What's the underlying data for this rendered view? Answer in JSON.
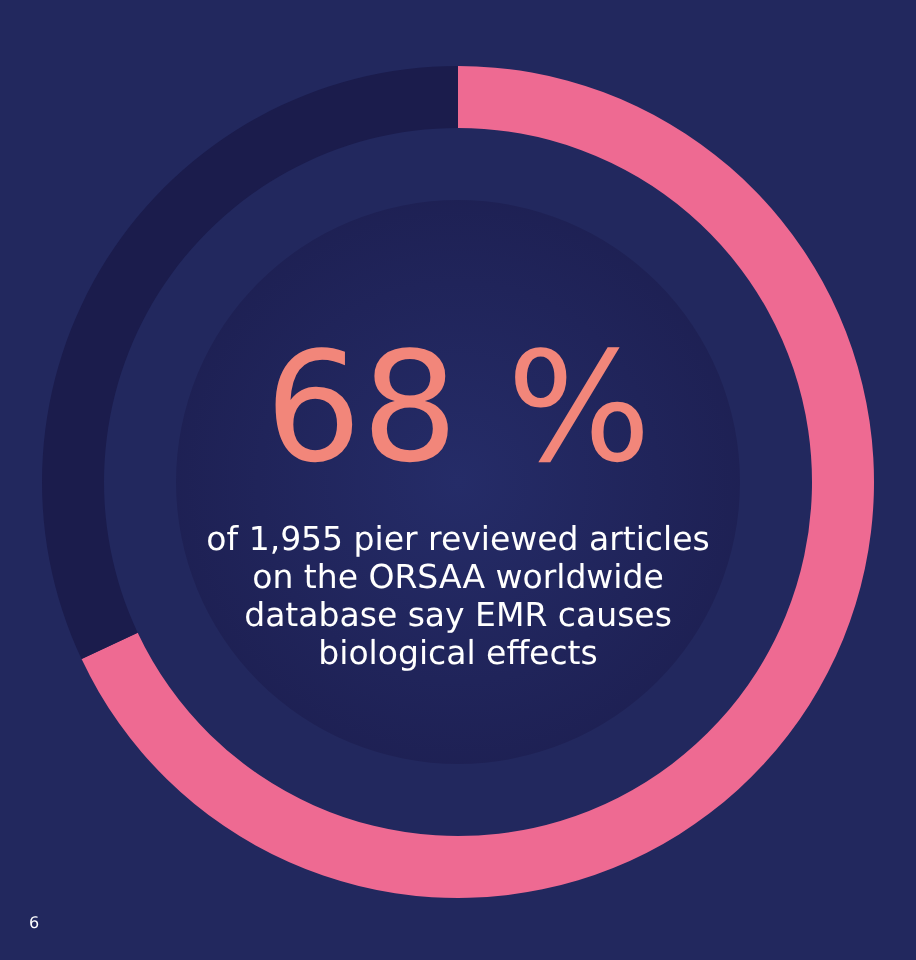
{
  "chart_data": {
    "type": "donut",
    "categories": [
      null,
      null
    ],
    "values": [
      68,
      32
    ],
    "colors": [
      "#ee6a92",
      "#1b1c4c"
    ],
    "value_labels": [
      "68 %",
      null
    ],
    "annotations": [
      "of 1,955 pier reviewed articles\non the ORSAA worldwide\ndatabase say EMR causes\nbiological effects",
      "6"
    ]
  }
}
